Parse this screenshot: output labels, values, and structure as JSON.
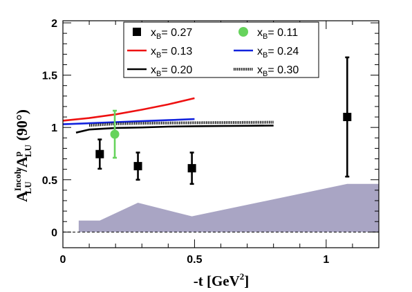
{
  "chart_data": {
    "type": "scatter",
    "xlabel": {
      "base": "-t [GeV",
      "sup": "2",
      "tail": "]"
    },
    "ylabel": {
      "a1": "A",
      "sup1": "Incoh",
      "sub1": "LU",
      "mid": "/A",
      "sup2": "p",
      "sub2": "LU",
      "tail": " (90°)"
    },
    "xlim": [
      0,
      1.2
    ],
    "ylim": [
      -0.15,
      2.02
    ],
    "xticks": [
      0,
      0.5,
      1
    ],
    "xtick_labels": [
      "0",
      "0.5",
      "1"
    ],
    "yticks": [
      0,
      0.5,
      1,
      1.5,
      2
    ],
    "ytick_labels": [
      "0",
      "0.5",
      "1",
      "1.5",
      "2"
    ],
    "reference_line_y": 1e-09,
    "legend": {
      "placement": "top",
      "entries": [
        {
          "key": "xb027",
          "prefix": "x",
          "sub": "B",
          "suffix": "= 0.27",
          "symbol": "square",
          "color": "#000000"
        },
        {
          "key": "xb011",
          "prefix": "x",
          "sub": "B",
          "suffix": "= 0.11",
          "symbol": "circle",
          "color": "#66d35c"
        },
        {
          "key": "xb013",
          "prefix": "x",
          "sub": "B",
          "suffix": "= 0.13",
          "symbol": "line",
          "color": "#ee1111"
        },
        {
          "key": "xb024",
          "prefix": "x",
          "sub": "B",
          "suffix": "= 0.24",
          "symbol": "line",
          "color": "#1122dd"
        },
        {
          "key": "xb020",
          "prefix": "x",
          "sub": "B",
          "suffix": "= 0.20",
          "symbol": "line",
          "color": "#000000"
        },
        {
          "key": "xb030",
          "prefix": "x",
          "sub": "B",
          "suffix": "= 0.30",
          "symbol": "dotted",
          "color": "#000000"
        }
      ]
    },
    "data_points": [
      {
        "series": "xb027",
        "x": 0.14,
        "y": 0.745,
        "err": 0.14,
        "marker": "square",
        "color": "#000000"
      },
      {
        "series": "xb027",
        "x": 0.285,
        "y": 0.63,
        "err": 0.13,
        "marker": "square",
        "color": "#000000"
      },
      {
        "series": "xb027",
        "x": 0.49,
        "y": 0.61,
        "err": 0.15,
        "marker": "square",
        "color": "#000000"
      },
      {
        "series": "xb027",
        "x": 1.08,
        "y": 1.1,
        "err": 0.57,
        "marker": "square",
        "color": "#000000"
      },
      {
        "series": "xb011",
        "x": 0.197,
        "y": 0.935,
        "err": 0.225,
        "marker": "circle",
        "color": "#66d35c"
      }
    ],
    "curves": [
      {
        "series": "xb013",
        "color": "#ee1111",
        "dash": "solid",
        "x": [
          0,
          0.1,
          0.2,
          0.3,
          0.4,
          0.5
        ],
        "y": [
          1.065,
          1.09,
          1.125,
          1.17,
          1.22,
          1.28
        ]
      },
      {
        "series": "xb024",
        "color": "#1122dd",
        "dash": "solid",
        "x": [
          0,
          0.1,
          0.2,
          0.3,
          0.4,
          0.5
        ],
        "y": [
          1.03,
          1.04,
          1.05,
          1.06,
          1.07,
          1.08
        ]
      },
      {
        "series": "xb020",
        "color": "#000000",
        "dash": "solid",
        "x": [
          0.05,
          0.1,
          0.2,
          0.3,
          0.4,
          0.5,
          0.6,
          0.7,
          0.8
        ],
        "y": [
          0.95,
          0.98,
          0.995,
          1.0,
          1.008,
          1.012,
          1.014,
          1.016,
          1.018
        ]
      },
      {
        "series": "xb030",
        "color": "#000000",
        "dash": "dotted",
        "x": [
          0.1,
          0.2,
          0.3,
          0.4,
          0.5,
          0.6,
          0.7,
          0.8
        ],
        "y": [
          1.02,
          1.035,
          1.04,
          1.043,
          1.045,
          1.047,
          1.048,
          1.05
        ]
      }
    ],
    "systematic_band": {
      "color": "#a9a5c4",
      "x": [
        0.06,
        0.14,
        0.285,
        0.49,
        1.08,
        1.2
      ],
      "y": [
        0.11,
        0.11,
        0.28,
        0.15,
        0.46,
        0.46
      ]
    }
  }
}
